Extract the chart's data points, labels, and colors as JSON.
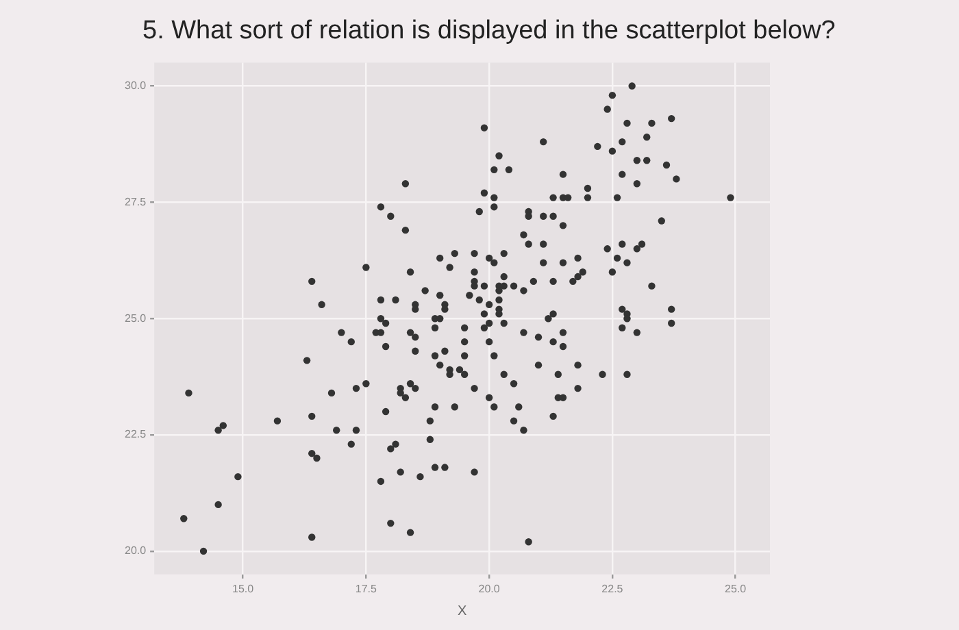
{
  "chart_data": {
    "type": "scatter",
    "title": "5. What sort of relation is displayed in the scatterplot below?",
    "xlabel": "X",
    "xlim": [
      13.2,
      25.7
    ],
    "ylim": [
      19.5,
      30.5
    ],
    "xticks": [
      {
        "value": 15,
        "label": "15.0"
      },
      {
        "value": 17.5,
        "label": "17.5"
      },
      {
        "value": 20,
        "label": "20.0"
      },
      {
        "value": 22.5,
        "label": "22.5"
      },
      {
        "value": 25,
        "label": "25.0"
      }
    ],
    "yticks": [
      {
        "value": 20,
        "label": "20.0"
      },
      {
        "value": 22.5,
        "label": "22.5"
      },
      {
        "value": 25,
        "label": "25.0"
      },
      {
        "value": 27.5,
        "label": "27.5"
      },
      {
        "value": 30,
        "label": "30.0"
      }
    ],
    "grid": true,
    "marker": "circle",
    "series": [
      {
        "color": "#333333",
        "x": [
          18.3,
          17.8,
          18.0,
          18.3,
          19.0,
          19.2,
          17.5,
          18.4,
          16.4,
          18.7,
          19.0,
          16.6,
          17.8,
          18.1,
          18.5,
          18.5,
          19.1,
          19.1,
          17.8,
          17.9,
          18.9,
          19.0,
          18.9,
          22.9,
          22.5,
          22.4,
          23.7,
          19.9,
          22.8,
          23.3,
          23.2,
          21.1,
          22.2,
          22.7,
          22.5,
          20.2,
          20.1,
          20.4,
          23.0,
          23.2,
          23.6,
          22.7,
          23.8,
          23.0,
          21.5,
          22.0,
          22.0,
          22.6,
          19.9,
          20.1,
          20.1,
          19.8,
          21.3,
          21.5,
          21.6,
          24.9,
          20.8,
          20.8,
          21.1,
          21.3,
          21.5,
          23.5,
          20.7,
          20.8,
          21.1,
          22.4,
          22.7,
          23.0,
          23.1,
          22.6,
          22.8,
          22.5,
          19.3,
          19.7,
          20.0,
          20.3,
          20.1,
          19.7,
          20.3,
          21.1,
          21.5,
          21.8,
          21.9,
          21.8,
          19.7,
          19.7,
          19.9,
          20.2,
          20.3,
          20.5,
          20.9,
          21.3,
          21.7,
          23.3,
          20.2,
          19.6,
          19.8,
          20.7,
          20.0,
          20.2,
          20.2,
          20.2,
          22.7,
          22.8,
          22.8,
          23.7,
          19.9,
          20.3,
          19.9,
          21.2,
          21.3,
          22.7,
          23.7,
          17.0,
          17.2,
          17.7,
          17.8,
          18.4,
          18.5,
          17.9,
          18.5,
          19.1,
          18.9,
          19.0,
          19.2,
          19.2,
          16.3,
          13.9,
          16.8,
          17.3,
          17.5,
          18.2,
          18.3,
          18.2,
          18.4,
          18.5,
          17.9,
          16.4,
          15.7,
          18.9,
          18.8,
          14.5,
          14.6,
          16.9,
          17.3,
          17.2,
          18.8,
          18.0,
          18.1,
          16.4,
          16.5,
          14.9,
          18.2,
          18.6,
          18.9,
          19.1,
          17.8,
          14.5,
          13.8,
          18.0,
          18.4,
          16.4,
          14.2,
          19.5,
          20.0,
          20.7,
          21.0,
          21.3,
          21.5,
          21.5,
          23.0,
          19.5,
          20.0,
          19.5,
          20.1,
          19.4,
          19.5,
          20.3,
          21.0,
          21.4,
          21.8,
          22.3,
          22.8,
          20.5,
          19.7,
          21.8,
          20.0,
          20.1,
          21.4,
          21.5,
          20.6,
          20.5,
          21.3,
          19.3,
          20.7,
          19.7,
          20.8
        ],
        "values": [
          27.9,
          27.4,
          27.2,
          26.9,
          26.3,
          26.1,
          26.1,
          26.0,
          25.8,
          25.6,
          25.5,
          25.3,
          25.4,
          25.4,
          25.3,
          25.2,
          25.3,
          25.2,
          25.0,
          24.9,
          25.0,
          25.0,
          24.8,
          30.0,
          29.8,
          29.5,
          29.3,
          29.1,
          29.2,
          29.2,
          28.9,
          28.8,
          28.7,
          28.8,
          28.6,
          28.5,
          28.2,
          28.2,
          28.4,
          28.4,
          28.3,
          28.1,
          28.0,
          27.9,
          28.1,
          27.8,
          27.6,
          27.6,
          27.7,
          27.6,
          27.4,
          27.3,
          27.6,
          27.6,
          27.6,
          27.6,
          27.3,
          27.2,
          27.2,
          27.2,
          27.0,
          27.1,
          26.8,
          26.6,
          26.6,
          26.5,
          26.6,
          26.5,
          26.6,
          26.3,
          26.2,
          26.0,
          26.4,
          26.4,
          26.3,
          26.4,
          26.2,
          26.0,
          25.9,
          26.2,
          26.2,
          26.3,
          26.0,
          25.9,
          25.8,
          25.7,
          25.7,
          25.7,
          25.7,
          25.7,
          25.8,
          25.8,
          25.8,
          25.7,
          25.6,
          25.5,
          25.4,
          25.6,
          25.3,
          25.4,
          25.2,
          25.1,
          25.2,
          25.1,
          25.0,
          25.2,
          25.1,
          24.9,
          24.8,
          25.0,
          25.1,
          24.8,
          24.9,
          24.7,
          24.5,
          24.7,
          24.7,
          24.7,
          24.6,
          24.4,
          24.3,
          24.3,
          24.2,
          24.0,
          23.9,
          23.8,
          24.1,
          23.4,
          23.4,
          23.5,
          23.6,
          23.4,
          23.3,
          23.5,
          23.6,
          23.5,
          23.0,
          22.9,
          22.8,
          23.1,
          22.8,
          22.6,
          22.7,
          22.6,
          22.6,
          22.3,
          22.4,
          22.2,
          22.3,
          22.1,
          22.0,
          21.6,
          21.7,
          21.6,
          21.8,
          21.8,
          21.5,
          21.0,
          20.7,
          20.6,
          20.4,
          20.3,
          20.0,
          24.8,
          24.9,
          24.7,
          24.6,
          24.5,
          24.7,
          24.4,
          24.7,
          24.5,
          24.5,
          24.2,
          24.2,
          23.9,
          23.8,
          23.8,
          24.0,
          23.8,
          24.0,
          23.8,
          23.8,
          23.6,
          23.5,
          23.5,
          23.3,
          23.1,
          23.3,
          23.3,
          23.1,
          22.8,
          22.9,
          23.1,
          22.6,
          21.7,
          20.2
        ]
      }
    ]
  }
}
